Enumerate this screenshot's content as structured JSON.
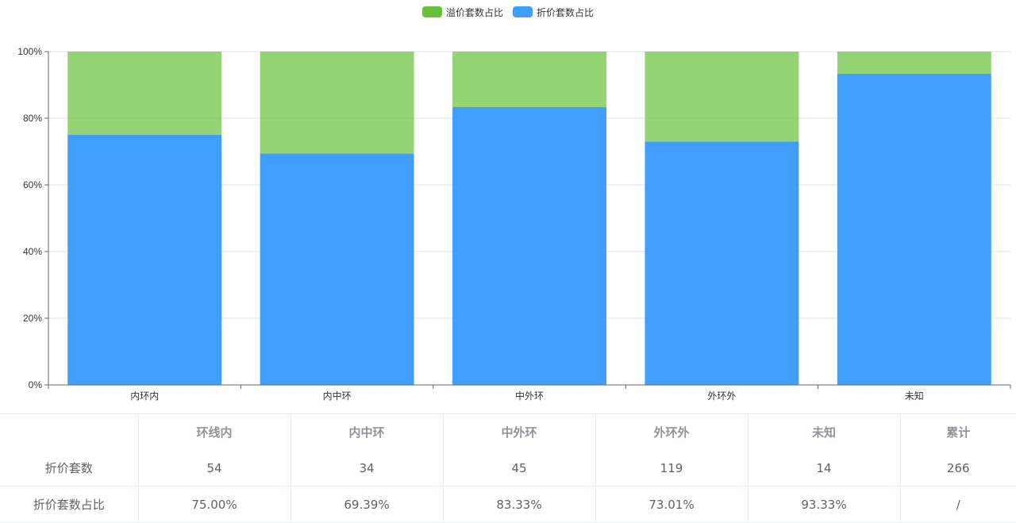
{
  "chart_data": {
    "type": "bar",
    "stacked": true,
    "categories": [
      "内环内",
      "内中环",
      "中外环",
      "外环外",
      "未知"
    ],
    "series": [
      {
        "name": "折价套数占比",
        "values": [
          75.0,
          69.39,
          83.33,
          73.01,
          93.33
        ],
        "color": "#409eff"
      },
      {
        "name": "溢价套数占比",
        "values": [
          25.0,
          30.61,
          16.67,
          26.99,
          6.67
        ],
        "color": "#67c23a"
      }
    ],
    "ylim": [
      0,
      100
    ],
    "yticks": [
      "0%",
      "20%",
      "40%",
      "60%",
      "80%",
      "100%"
    ],
    "grid": true,
    "legend": "top-center"
  },
  "legend": {
    "items": [
      {
        "label": "溢价套数占比",
        "color": "#67c23a"
      },
      {
        "label": "折价套数占比",
        "color": "#409eff"
      }
    ]
  },
  "table": {
    "headers": [
      "",
      "环线内",
      "内中环",
      "中外环",
      "外环外",
      "未知",
      "累计"
    ],
    "rows": [
      [
        "折价套数",
        "54",
        "34",
        "45",
        "119",
        "14",
        "266"
      ],
      [
        "折价套数占比",
        "75.00%",
        "69.39%",
        "83.33%",
        "73.01%",
        "93.33%",
        "/"
      ]
    ]
  }
}
